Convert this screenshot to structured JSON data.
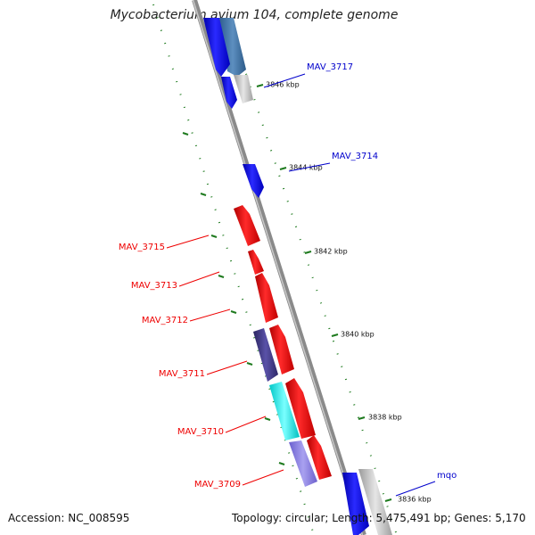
{
  "title": "Mycobacterium avium 104, complete genome",
  "footer": {
    "accession": "Accession: NC_008595",
    "summary": "Topology: circular; Length: 5,475,491 bp; Genes: 5,170"
  },
  "colors": {
    "forward_gene": "#0000ee",
    "reverse_gene": "#ee0000",
    "backbone": "#8a8a8a",
    "dotted_track": "#1e7a1e"
  },
  "scale_ticks": [
    "3846 kbp",
    "3844 kbp",
    "3842 kbp",
    "3840 kbp",
    "3838 kbp",
    "3836 kbp"
  ],
  "gene_labels": {
    "outer": [
      "MAV_3717",
      "MAV_3714",
      "mqo"
    ],
    "inner": [
      "MAV_3715",
      "MAV_3713",
      "MAV_3712",
      "MAV_3711",
      "MAV_3710",
      "MAV_3709"
    ]
  }
}
